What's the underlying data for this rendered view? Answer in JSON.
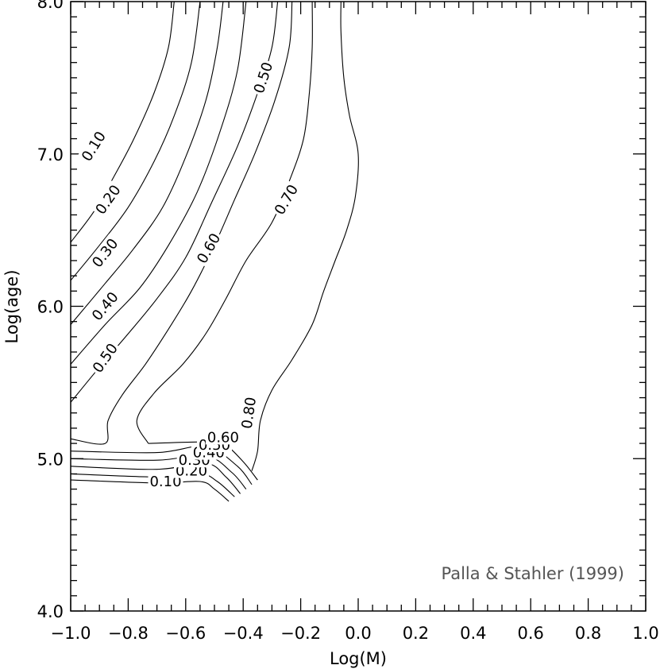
{
  "chart_data": {
    "type": "line",
    "title": "",
    "xlabel": "Log(M)",
    "ylabel": "Log(age)",
    "xlim": [
      -1.0,
      1.0
    ],
    "ylim": [
      4.0,
      8.0
    ],
    "grid": false,
    "x_ticks": [
      "−1.0",
      "−0.8",
      "−0.6",
      "−0.4",
      "−0.2",
      "0.0",
      "0.2",
      "0.4",
      "0.6",
      "0.8",
      "1.0"
    ],
    "y_ticks": [
      "4.0",
      "5.0",
      "6.0",
      "7.0",
      "8.0"
    ],
    "annotation": "Palla & Stahler (1999)",
    "series": [
      {
        "name": "0.10",
        "values": [
          [
            -1.0,
            6.42
          ],
          [
            -0.92,
            6.62
          ],
          [
            -0.85,
            6.85
          ],
          [
            -0.78,
            7.1
          ],
          [
            -0.71,
            7.4
          ],
          [
            -0.66,
            7.7
          ],
          [
            -0.64,
            8.0
          ]
        ]
      },
      {
        "name": "0.20",
        "values": [
          [
            -1.0,
            6.17
          ],
          [
            -0.9,
            6.4
          ],
          [
            -0.8,
            6.65
          ],
          [
            -0.71,
            6.95
          ],
          [
            -0.64,
            7.25
          ],
          [
            -0.58,
            7.6
          ],
          [
            -0.55,
            8.0
          ]
        ]
      },
      {
        "name": "0.30",
        "values": [
          [
            -1.0,
            5.88
          ],
          [
            -0.88,
            6.15
          ],
          [
            -0.78,
            6.38
          ],
          [
            -0.68,
            6.65
          ],
          [
            -0.6,
            6.98
          ],
          [
            -0.53,
            7.35
          ],
          [
            -0.49,
            7.7
          ],
          [
            -0.47,
            8.0
          ]
        ]
      },
      {
        "name": "0.40",
        "values": [
          [
            -1.0,
            5.62
          ],
          [
            -0.88,
            5.88
          ],
          [
            -0.76,
            6.12
          ],
          [
            -0.66,
            6.4
          ],
          [
            -0.56,
            6.75
          ],
          [
            -0.48,
            7.15
          ],
          [
            -0.42,
            7.55
          ],
          [
            -0.39,
            8.0
          ]
        ]
      },
      {
        "name": "0.50",
        "values": [
          [
            -1.0,
            5.37
          ],
          [
            -0.9,
            5.6
          ],
          [
            -0.8,
            5.82
          ],
          [
            -0.7,
            6.05
          ],
          [
            -0.6,
            6.32
          ],
          [
            -0.51,
            6.68
          ],
          [
            -0.42,
            7.05
          ],
          [
            -0.35,
            7.4
          ],
          [
            -0.3,
            7.7
          ],
          [
            -0.28,
            8.0
          ]
        ]
      },
      {
        "name": "0.60",
        "values": [
          [
            -1.0,
            5.13
          ],
          [
            -0.88,
            5.1
          ],
          [
            -0.87,
            5.25
          ],
          [
            -0.82,
            5.42
          ],
          [
            -0.74,
            5.62
          ],
          [
            -0.66,
            5.85
          ],
          [
            -0.58,
            6.1
          ],
          [
            -0.5,
            6.4
          ],
          [
            -0.43,
            6.7
          ],
          [
            -0.36,
            7.0
          ],
          [
            -0.29,
            7.35
          ],
          [
            -0.24,
            7.7
          ],
          [
            -0.23,
            8.0
          ]
        ]
      },
      {
        "name": "0.70",
        "values": [
          [
            -0.73,
            5.1
          ],
          [
            -0.77,
            5.25
          ],
          [
            -0.71,
            5.43
          ],
          [
            -0.61,
            5.62
          ],
          [
            -0.53,
            5.82
          ],
          [
            -0.46,
            6.05
          ],
          [
            -0.39,
            6.3
          ],
          [
            -0.3,
            6.55
          ],
          [
            -0.24,
            6.82
          ],
          [
            -0.19,
            7.1
          ],
          [
            -0.17,
            7.4
          ],
          [
            -0.16,
            7.7
          ],
          [
            -0.16,
            8.0
          ]
        ]
      },
      {
        "name": "0.80",
        "values": [
          [
            -0.37,
            4.92
          ],
          [
            -0.35,
            5.05
          ],
          [
            -0.34,
            5.25
          ],
          [
            -0.3,
            5.45
          ],
          [
            -0.23,
            5.65
          ],
          [
            -0.16,
            5.88
          ],
          [
            -0.12,
            6.1
          ],
          [
            -0.08,
            6.3
          ],
          [
            -0.04,
            6.5
          ],
          [
            -0.01,
            6.72
          ],
          [
            0.0,
            7.0
          ],
          [
            -0.03,
            7.25
          ],
          [
            -0.05,
            7.5
          ],
          [
            -0.06,
            7.8
          ],
          [
            -0.06,
            8.0
          ]
        ]
      }
    ],
    "lower_contours": [
      {
        "name": "0.10",
        "values": [
          [
            -1.0,
            4.86
          ],
          [
            -0.7,
            4.84
          ],
          [
            -0.55,
            4.85
          ],
          [
            -0.5,
            4.8
          ],
          [
            -0.45,
            4.72
          ]
        ]
      },
      {
        "name": "0.20",
        "values": [
          [
            -1.0,
            4.9
          ],
          [
            -0.7,
            4.88
          ],
          [
            -0.55,
            4.9
          ],
          [
            -0.49,
            4.85
          ],
          [
            -0.43,
            4.75
          ]
        ]
      },
      {
        "name": "0.30",
        "values": [
          [
            -1.0,
            4.95
          ],
          [
            -0.7,
            4.93
          ],
          [
            -0.53,
            4.97
          ],
          [
            -0.46,
            4.88
          ],
          [
            -0.41,
            4.77
          ]
        ]
      },
      {
        "name": "0.40",
        "values": [
          [
            -1.0,
            5.0
          ],
          [
            -0.7,
            4.99
          ],
          [
            -0.53,
            5.02
          ],
          [
            -0.44,
            4.91
          ],
          [
            -0.39,
            4.8
          ]
        ]
      },
      {
        "name": "0.50",
        "values": [
          [
            -1.0,
            5.05
          ],
          [
            -0.7,
            5.04
          ],
          [
            -0.53,
            5.08
          ],
          [
            -0.42,
            4.95
          ],
          [
            -0.37,
            4.83
          ]
        ]
      },
      {
        "name": "0.60",
        "values": [
          [
            -0.73,
            5.1
          ],
          [
            -0.54,
            5.11
          ],
          [
            -0.47,
            5.1
          ],
          [
            -0.4,
            4.98
          ],
          [
            -0.35,
            4.86
          ]
        ]
      }
    ],
    "contour_labels": [
      {
        "text": "0.10",
        "x": -0.92,
        "y": 7.05,
        "angle": -58
      },
      {
        "text": "0.20",
        "x": -0.87,
        "y": 6.7,
        "angle": -55
      },
      {
        "text": "0.30",
        "x": -0.88,
        "y": 6.35,
        "angle": -52
      },
      {
        "text": "0.40",
        "x": -0.88,
        "y": 6.0,
        "angle": -50
      },
      {
        "text": "0.50",
        "x": -0.88,
        "y": 5.66,
        "angle": -55
      },
      {
        "text": "0.50",
        "x": -0.33,
        "y": 7.5,
        "angle": -72
      },
      {
        "text": "0.60",
        "x": -0.52,
        "y": 6.38,
        "angle": -60
      },
      {
        "text": "0.70",
        "x": -0.25,
        "y": 6.7,
        "angle": -60
      },
      {
        "text": "0.80",
        "x": -0.38,
        "y": 5.3,
        "angle": -82
      },
      {
        "text": "0.10",
        "x": -0.67,
        "y": 4.85,
        "angle": 0
      },
      {
        "text": "0.20",
        "x": -0.58,
        "y": 4.92,
        "angle": 0
      },
      {
        "text": "0.30",
        "x": -0.57,
        "y": 4.99,
        "angle": 0
      },
      {
        "text": "0.40",
        "x": -0.52,
        "y": 5.04,
        "angle": 0
      },
      {
        "text": "0.50",
        "x": -0.5,
        "y": 5.09,
        "angle": 0
      },
      {
        "text": "0.60",
        "x": -0.47,
        "y": 5.14,
        "angle": 0
      }
    ]
  }
}
